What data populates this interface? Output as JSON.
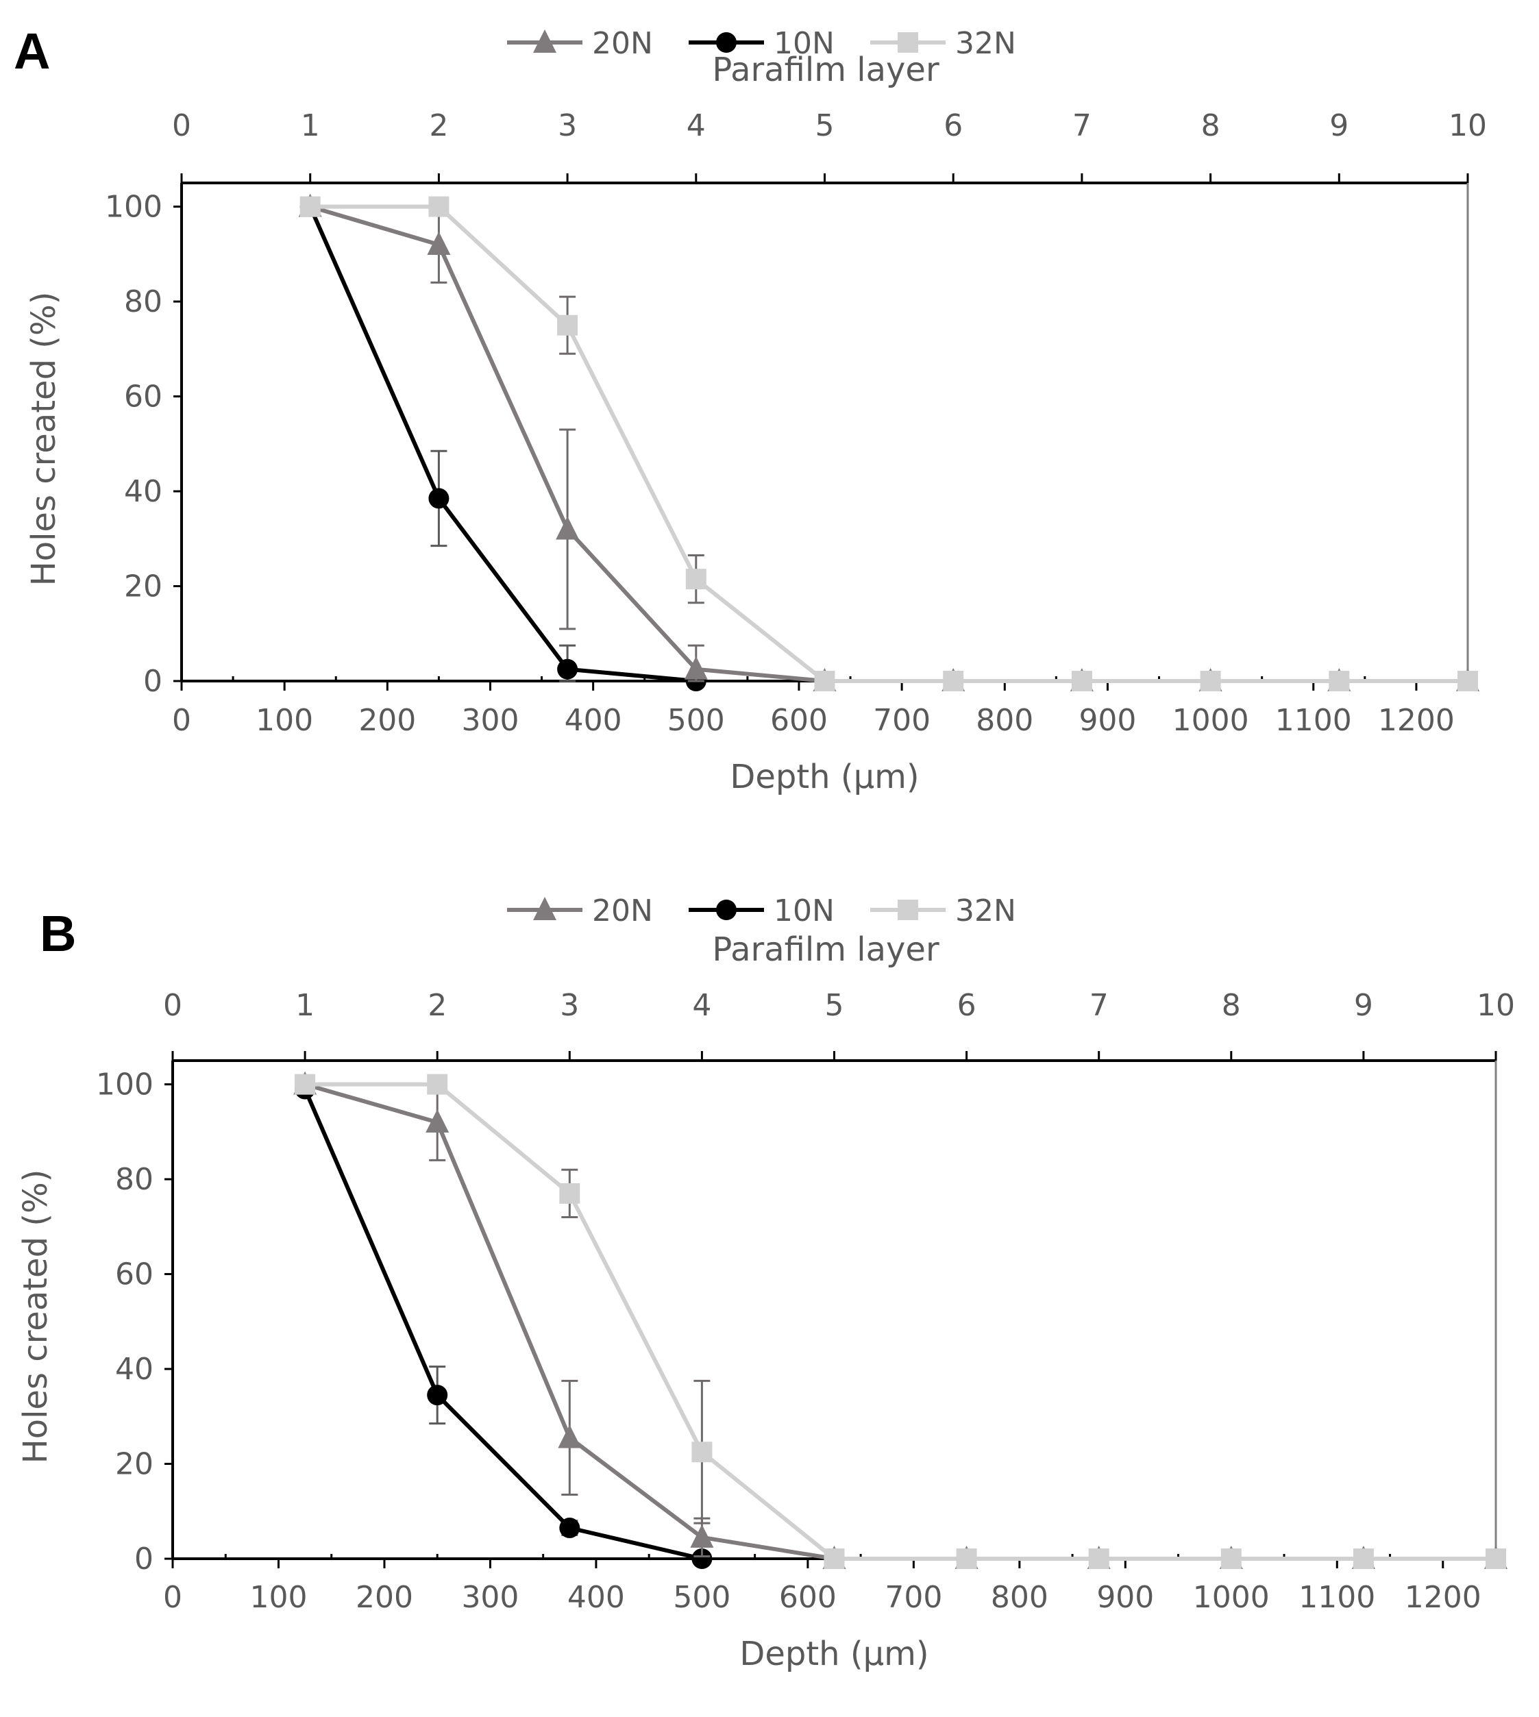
{
  "colors": {
    "series_20N": "#7f7a7b",
    "series_10N": "#000000",
    "series_32N": "#d0d0d0",
    "text": "#595959",
    "axis": "#000000",
    "frame": "#808080"
  },
  "chart_data": [
    {
      "type": "line",
      "panel_label": "A",
      "xlabel": "Depth (µm)",
      "ylabel": "Holes created (%)",
      "x2label": "Parafilm layer",
      "xlim": [
        0,
        1250
      ],
      "ylim": [
        0,
        105
      ],
      "x_ticks": [
        "0",
        "100",
        "200",
        "300",
        "400",
        "500",
        "600",
        "700",
        "800",
        "900",
        "1000",
        "1100",
        "1200"
      ],
      "x2_ticks": [
        "0",
        "1",
        "2",
        "3",
        "4",
        "5",
        "6",
        "7",
        "8",
        "9",
        "10"
      ],
      "y_ticks": [
        "0",
        "20",
        "40",
        "60",
        "80",
        "100"
      ],
      "legend": [
        "20N",
        "10N",
        "32N"
      ],
      "legend_position": "top-center",
      "x": [
        125,
        250,
        375,
        500,
        625,
        750,
        875,
        1000,
        1125,
        1250
      ],
      "series": [
        {
          "name": "20N",
          "marker": "triangle",
          "values": [
            100,
            92,
            32,
            2.5,
            0,
            0,
            0,
            0,
            0,
            0
          ],
          "error": [
            0,
            8,
            21,
            5,
            0,
            0,
            0,
            0,
            0,
            0
          ]
        },
        {
          "name": "10N",
          "marker": "circle",
          "values": [
            100,
            38.5,
            2.5,
            0,
            null,
            null,
            null,
            null,
            null,
            null
          ],
          "error": [
            0,
            10,
            5,
            0,
            0,
            0,
            0,
            0,
            0,
            0
          ]
        },
        {
          "name": "32N",
          "marker": "square",
          "values": [
            100,
            100,
            75,
            21.5,
            0,
            0,
            0,
            0,
            0,
            0
          ],
          "error": [
            0,
            0,
            6,
            5,
            0,
            0,
            0,
            0,
            0,
            0
          ]
        }
      ]
    },
    {
      "type": "line",
      "panel_label": "B",
      "xlabel": "Depth (µm)",
      "ylabel": "Holes created (%)",
      "x2label": "Parafilm layer",
      "xlim": [
        0,
        1250
      ],
      "ylim": [
        0,
        105
      ],
      "x_ticks": [
        "0",
        "100",
        "200",
        "300",
        "400",
        "500",
        "600",
        "700",
        "800",
        "900",
        "1000",
        "1100",
        "1200"
      ],
      "x2_ticks": [
        "0",
        "1",
        "2",
        "3",
        "4",
        "5",
        "6",
        "7",
        "8",
        "9",
        "10"
      ],
      "y_ticks": [
        "0",
        "20",
        "40",
        "60",
        "80",
        "100"
      ],
      "legend": [
        "20N",
        "10N",
        "32N"
      ],
      "legend_position": "top-center",
      "x": [
        125,
        250,
        375,
        500,
        625,
        750,
        875,
        1000,
        1125,
        1250
      ],
      "series": [
        {
          "name": "20N",
          "marker": "triangle",
          "values": [
            100,
            92,
            25.5,
            4.5,
            0,
            0,
            0,
            0,
            0,
            0
          ],
          "error": [
            0,
            8,
            12,
            4,
            0,
            0,
            0,
            0,
            0,
            0
          ]
        },
        {
          "name": "10N",
          "marker": "circle",
          "values": [
            99,
            34.5,
            6.5,
            0,
            null,
            null,
            null,
            null,
            null,
            null
          ],
          "error": [
            0,
            6,
            1.5,
            0,
            0,
            0,
            0,
            0,
            0,
            0
          ]
        },
        {
          "name": "32N",
          "marker": "square",
          "values": [
            100,
            100,
            77,
            22.5,
            0,
            0,
            0,
            0,
            0,
            0
          ],
          "error": [
            0,
            0,
            5,
            15,
            0,
            0,
            0,
            0,
            0,
            0
          ]
        }
      ]
    }
  ]
}
